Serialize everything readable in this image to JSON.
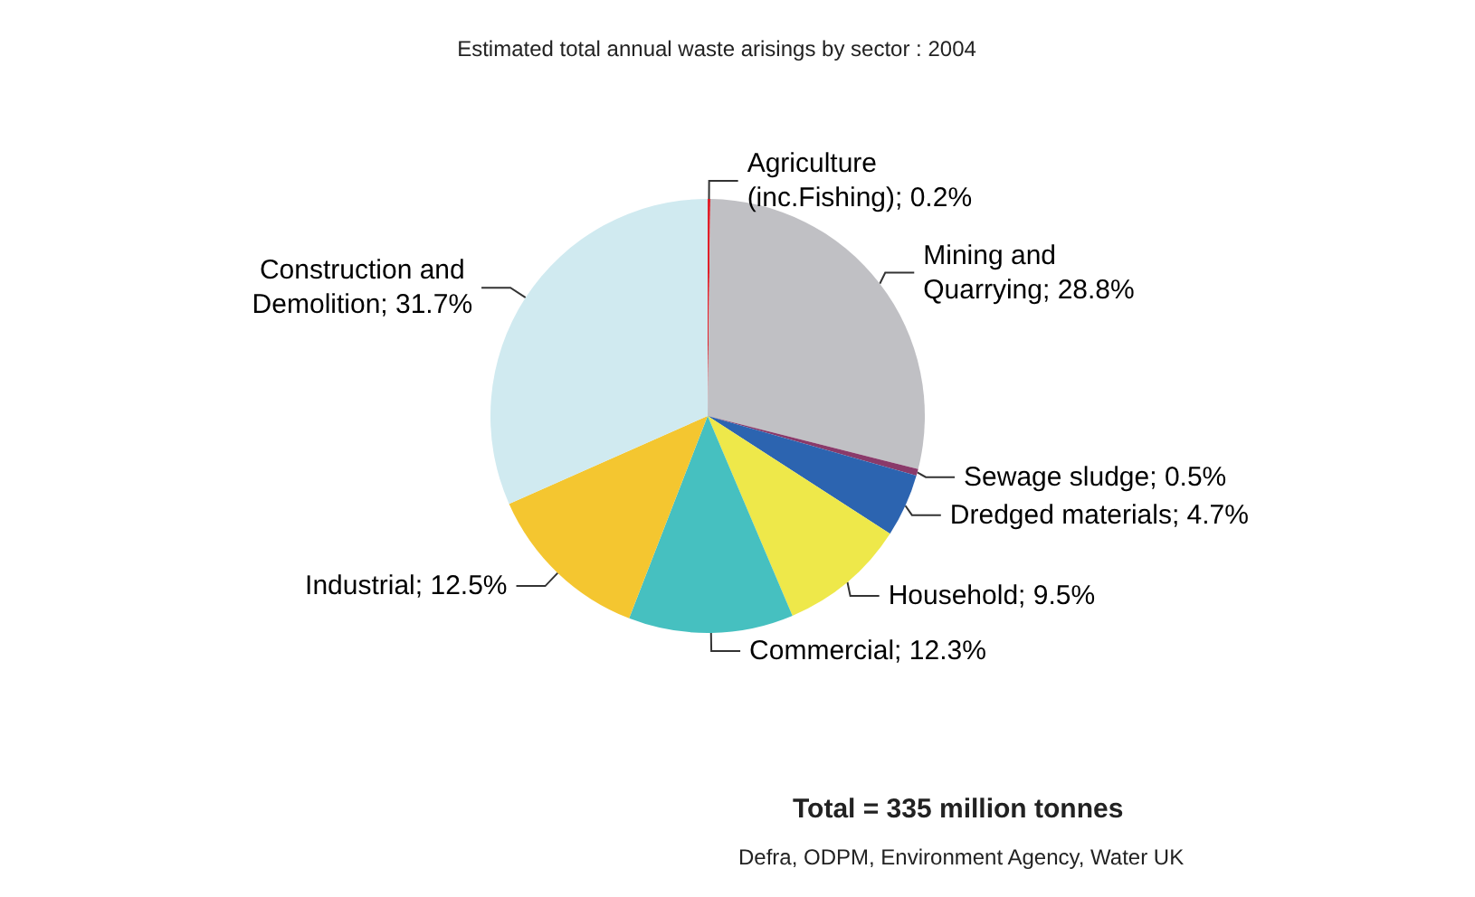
{
  "chart_data": {
    "type": "pie",
    "title": "Estimated total annual waste arisings by sector : 2004",
    "categories": [
      "Agriculture (inc.Fishing)",
      "Mining and Quarrying",
      "Sewage sludge",
      "Dredged materials",
      "Household",
      "Commercial",
      "Industrial",
      "Construction and Demolition"
    ],
    "values": [
      0.2,
      28.8,
      0.5,
      4.7,
      9.5,
      12.3,
      12.5,
      31.7
    ],
    "value_labels": [
      "0.2%",
      "28.8%",
      "0.5%",
      "4.7%",
      "9.5%",
      "12.3%",
      "12.5%",
      "31.7%"
    ],
    "colors": [
      "#e0202a",
      "#c0c0c4",
      "#8a3a6a",
      "#2c64b0",
      "#eee84a",
      "#46c0c0",
      "#f4c630",
      "#d0eaf0"
    ],
    "annotations": [
      "Total = 335 million tonnes",
      "Defra, ODPM, Environment Agency, Water UK"
    ]
  }
}
